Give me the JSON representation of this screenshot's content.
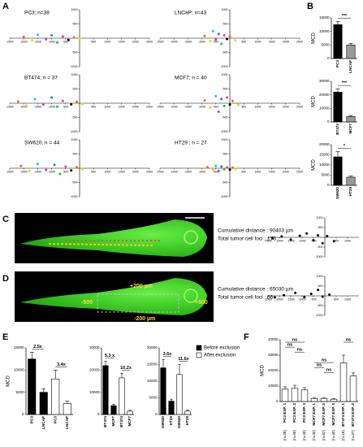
{
  "panel_letters": [
    "A",
    "B",
    "C",
    "D",
    "E",
    "F"
  ],
  "panel_c": {
    "cumulative": "Cumulative distance : 90403 µm",
    "foci": "Total tumor cell foci : 173"
  },
  "panel_d": {
    "cumulative": "Cumulative distance : 65030 µm",
    "foci": "Total tumor cell foci : 66",
    "box_labels": [
      "+200 µm",
      "-500",
      "+500",
      "-200 µm"
    ]
  },
  "panel_e_legend": [
    {
      "name": "Before exclusion",
      "color": "#000000"
    },
    {
      "name": "After exclusion",
      "color": "#ffffff"
    }
  ],
  "scatter_palette": [
    "#ee6633",
    "#dddd00",
    "#00ccff",
    "#cc33cc",
    "#3366ff",
    "#00cc33",
    "#ff3399",
    "#000000"
  ],
  "chart_data": [
    {
      "type": "scatter",
      "title": "PC3; n=38",
      "xlim": [
        -2500,
        2500
      ],
      "ylim": [
        -1000,
        1000
      ],
      "xticks": [
        -2500,
        -2000,
        -1500,
        -1000,
        -500,
        500,
        1000,
        1500,
        2000,
        2500
      ],
      "yticks": [
        -1000,
        -500,
        500,
        1000
      ],
      "x": [
        -2000,
        -1700,
        -1500,
        -1200,
        -1000,
        -800,
        -600,
        -400,
        -200,
        0
      ],
      "values": [
        50,
        -80,
        120,
        -40,
        100,
        -150,
        60,
        -60,
        30,
        -20
      ]
    },
    {
      "type": "scatter",
      "title": "LNCaP; n=43",
      "xlim": [
        -2500,
        2500
      ],
      "ylim": [
        -1000,
        1000
      ],
      "xticks": [
        -2500,
        -2000,
        -1500,
        -1000,
        -500,
        500,
        1000,
        1500,
        2000,
        2500
      ],
      "yticks": [
        -1000,
        -500,
        500,
        1000
      ],
      "x": [
        -900,
        -700,
        -600,
        -500,
        -400,
        -300,
        -200,
        -100,
        0,
        200
      ],
      "values": [
        80,
        -100,
        250,
        -50,
        150,
        -200,
        100,
        -30,
        60,
        -80
      ]
    },
    {
      "type": "scatter",
      "title": "BT474; n = 37",
      "xlim": [
        -2500,
        2500
      ],
      "ylim": [
        -1000,
        1000
      ],
      "xticks": [
        -2500,
        -2000,
        -1500,
        -1000,
        -500,
        500,
        1000,
        1500,
        2000,
        2500
      ],
      "yticks": [
        -1000,
        -500,
        500,
        1000
      ],
      "x": [
        -2200,
        -1900,
        -1600,
        -1300,
        -1000,
        -800,
        -600,
        -300,
        -100,
        100
      ],
      "values": [
        60,
        -90,
        150,
        -50,
        200,
        -120,
        80,
        -40,
        50,
        -30
      ]
    },
    {
      "type": "scatter",
      "title": "MCF7; n = 40",
      "xlim": [
        -2500,
        2500
      ],
      "ylim": [
        -1000,
        1000
      ],
      "xticks": [
        -2500,
        -2000,
        -1500,
        -1000,
        -500,
        500,
        1000,
        1500,
        2000,
        2500
      ],
      "yticks": [
        -1000,
        -500,
        500,
        1000
      ],
      "x": [
        -900,
        -700,
        -500,
        -400,
        -300,
        -200,
        -100,
        0,
        100,
        300
      ],
      "values": [
        100,
        -150,
        250,
        -300,
        150,
        -100,
        200,
        -50,
        80,
        -60
      ]
    },
    {
      "type": "scatter",
      "title": "SW620; n = 44",
      "xlim": [
        -2500,
        2500
      ],
      "ylim": [
        -1000,
        1000
      ],
      "xticks": [
        -2500,
        -2000,
        -1500,
        -1000,
        -500,
        500,
        1000,
        1500,
        2000,
        2500
      ],
      "yticks": [
        -1000,
        -500,
        500,
        1000
      ],
      "x": [
        -2100,
        -1800,
        -1500,
        -1200,
        -900,
        -700,
        -500,
        -300,
        -100,
        100
      ],
      "values": [
        80,
        -100,
        150,
        -60,
        120,
        -200,
        60,
        -80,
        40,
        -30
      ]
    },
    {
      "type": "scatter",
      "title": "HT29 ; n = 27",
      "xlim": [
        -2500,
        2500
      ],
      "ylim": [
        -1000,
        1000
      ],
      "xticks": [
        -2500,
        -2000,
        -1500,
        -1000,
        -500,
        500,
        1000,
        1500,
        2000,
        2500
      ],
      "yticks": [
        -1000,
        -500,
        500,
        1000
      ],
      "x": [
        -800,
        -600,
        -500,
        -400,
        -300,
        -200,
        -100,
        0,
        100,
        200
      ],
      "values": [
        40,
        -60,
        80,
        -100,
        60,
        -40,
        30,
        -50,
        20,
        -30
      ]
    },
    {
      "type": "bar",
      "y_label": "MCD",
      "categories": [
        "PC3",
        "LNCAP"
      ],
      "values": [
        12500,
        5000
      ],
      "errors": [
        1200,
        600
      ],
      "colors": [
        "#000000",
        "#999999"
      ],
      "ylim": [
        0,
        15000
      ],
      "yticks": [
        0,
        5000,
        10000,
        15000
      ],
      "annotations": [
        "***"
      ]
    },
    {
      "type": "bar",
      "y_label": "MCD",
      "categories": [
        "BT474",
        "MCF7"
      ],
      "values": [
        22000,
        4000
      ],
      "errors": [
        2500,
        800
      ],
      "colors": [
        "#000000",
        "#999999"
      ],
      "ylim": [
        0,
        30000
      ],
      "yticks": [
        0,
        10000,
        20000,
        30000
      ],
      "annotations": [
        "***"
      ]
    },
    {
      "type": "bar",
      "y_label": "MCD",
      "categories": [
        "SW620",
        "HT29"
      ],
      "values": [
        14000,
        4000
      ],
      "errors": [
        2500,
        600
      ],
      "colors": [
        "#000000",
        "#999999"
      ],
      "ylim": [
        0,
        20000
      ],
      "yticks": [
        0,
        5000,
        10000,
        15000,
        20000
      ],
      "annotations": [
        "*"
      ]
    },
    {
      "type": "scatter",
      "xlim": [
        -2500,
        1500
      ],
      "ylim": [
        -1000,
        1000
      ],
      "xticks": [
        -2500,
        -2000,
        -1500,
        -1000,
        -500,
        500,
        1000
      ],
      "yticks": [
        -1000,
        -500,
        500,
        1000
      ],
      "x": [
        -2300,
        -1900,
        -1500,
        -1100,
        -800,
        -500,
        -300,
        -100,
        100,
        400
      ],
      "values": [
        -50,
        40,
        -120,
        80,
        200,
        -150,
        100,
        -300,
        60,
        -200
      ]
    },
    {
      "type": "scatter",
      "xlim": [
        -2500,
        1500
      ],
      "ylim": [
        -1000,
        1000
      ],
      "xticks": [
        -2500,
        -2000,
        -1500,
        -1000,
        -500,
        500,
        1000
      ],
      "yticks": [
        -1000,
        -500,
        500,
        1000
      ],
      "x": [
        -2200,
        -1800,
        -1300,
        -900,
        -600,
        -300,
        -100,
        200
      ],
      "values": [
        -80,
        30,
        150,
        -60,
        100,
        300,
        -40,
        60
      ]
    },
    {
      "type": "bar",
      "y_label": "MCD",
      "categories": [
        "PC3",
        "LNCAP",
        "PC3",
        "LNCAP"
      ],
      "values": [
        12500,
        5000,
        8000,
        2500
      ],
      "errors": [
        1500,
        800,
        2000,
        500
      ],
      "colors": [
        "#000000",
        "#000000",
        "#ffffff",
        "#ffffff"
      ],
      "ylim": [
        0,
        15000
      ],
      "yticks": [
        0,
        5000,
        10000,
        15000
      ],
      "annotations": [
        "2.5x",
        "3.4x"
      ]
    },
    {
      "type": "bar",
      "categories": [
        "BT474",
        "MCF7",
        "BT474",
        "MCF7"
      ],
      "values": [
        22000,
        4000,
        16500,
        1500
      ],
      "errors": [
        2000,
        600,
        2000,
        400
      ],
      "colors": [
        "#000000",
        "#000000",
        "#ffffff",
        "#ffffff"
      ],
      "ylim": [
        0,
        30000
      ],
      "yticks": [
        0,
        10000,
        20000,
        30000
      ],
      "annotations": [
        "5.3 x",
        "10.2x"
      ]
    },
    {
      "type": "bar",
      "categories": [
        "SW620",
        "HT29",
        "SW620",
        "HT29"
      ],
      "values": [
        14000,
        4000,
        12000,
        1000
      ],
      "errors": [
        2500,
        600,
        3000,
        300
      ],
      "colors": [
        "#000000",
        "#000000",
        "#ffffff",
        "#ffffff"
      ],
      "ylim": [
        0,
        20000
      ],
      "yticks": [
        0,
        5000,
        10000,
        15000,
        20000
      ],
      "annotations": [
        "3.6x",
        "11.6x"
      ]
    },
    {
      "type": "bar",
      "y_label": "MCD",
      "categories": [
        "PC3 EXP. 1",
        "PC3 EXP. 2",
        "PC3 EXP. 3",
        "MCF7 EXP. 1",
        "MCF7 EXP. 2",
        "MCF7 EXP. 3",
        "BT474 EXP. 1",
        "BT474 EXP. 2"
      ],
      "n_labels": [
        "(n=38)",
        "(n=40)",
        "(n=40)",
        "(n=40)",
        "(n=32)",
        "(n=40)",
        "(n=16)",
        "(n=37)"
      ],
      "values": [
        8000,
        8500,
        7500,
        2000,
        2000,
        1500,
        25000,
        16500
      ],
      "errors": [
        1500,
        2000,
        1500,
        300,
        300,
        300,
        5000,
        2000
      ],
      "colors": [
        "#ffffff",
        "#ffffff",
        "#ffffff",
        "#ffffff",
        "#ffffff",
        "#ffffff",
        "#ffffff",
        "#ffffff"
      ],
      "ylim": [
        0,
        40000
      ],
      "yticks": [
        0,
        10000,
        20000,
        30000,
        40000
      ],
      "annotations": [
        "ns",
        "ns",
        "ns",
        "ns",
        "ns",
        "ns",
        "ns"
      ]
    }
  ]
}
